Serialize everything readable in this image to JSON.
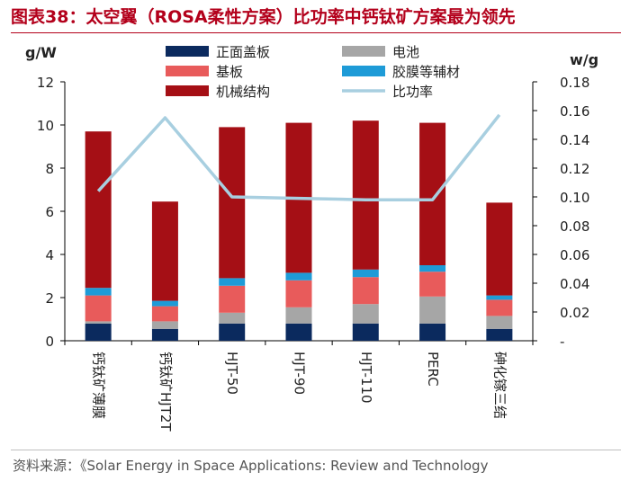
{
  "title": "图表38：太空翼（ROSA柔性方案）比功率中钙钛矿方案最为领先",
  "source": "资料来源：《Solar Energy in Space Applications: Review and Technology",
  "colors": {
    "front_panel": "#0b2a5e",
    "battery": "#a6a6a6",
    "substrate": "#e85b5b",
    "glue_film": "#1e9bd7",
    "mechanical": "#a50f15",
    "specific_power": "#a8cfe0",
    "title": "#b3001b"
  },
  "chart_data": {
    "type": "bar",
    "stacked": true,
    "categories": [
      "钙钛矿薄膜",
      "钙钛矿HJT2T",
      "HJT-50",
      "HJT-90",
      "HJT-110",
      "PERC",
      "砷化镓三结"
    ],
    "y_left": {
      "label": "g/W",
      "ylim": [
        0,
        12
      ],
      "ticks": [
        "0",
        "2",
        "4",
        "6",
        "8",
        "10",
        "12"
      ]
    },
    "y_right": {
      "label": "w/g",
      "ylim": [
        0,
        0.18
      ],
      "ticks": [
        "-",
        "0.02",
        "0.04",
        "0.06",
        "0.08",
        "0.10",
        "0.12",
        "0.14",
        "0.16",
        "0.18"
      ]
    },
    "series": [
      {
        "name": "正面盖板",
        "key": "front_panel",
        "axis": "left",
        "values": [
          0.8,
          0.55,
          0.8,
          0.8,
          0.8,
          0.8,
          0.55
        ]
      },
      {
        "name": "电池",
        "key": "battery",
        "axis": "left",
        "values": [
          0.1,
          0.35,
          0.5,
          0.75,
          0.9,
          1.25,
          0.6
        ]
      },
      {
        "name": "基板",
        "key": "substrate",
        "axis": "left",
        "values": [
          1.2,
          0.7,
          1.25,
          1.25,
          1.25,
          1.15,
          0.75
        ]
      },
      {
        "name": "胶膜等辅材",
        "key": "glue_film",
        "axis": "left",
        "values": [
          0.35,
          0.25,
          0.35,
          0.35,
          0.35,
          0.3,
          0.2
        ]
      },
      {
        "name": "机械结构",
        "key": "mechanical",
        "axis": "left",
        "values": [
          7.25,
          4.6,
          7.0,
          6.95,
          6.9,
          6.6,
          4.3
        ]
      },
      {
        "name": "比功率",
        "key": "specific_power",
        "axis": "right",
        "type": "line",
        "values": [
          0.104,
          0.155,
          0.1,
          0.099,
          0.098,
          0.098,
          0.157
        ]
      }
    ],
    "legend_placement": "top",
    "grid": false
  }
}
